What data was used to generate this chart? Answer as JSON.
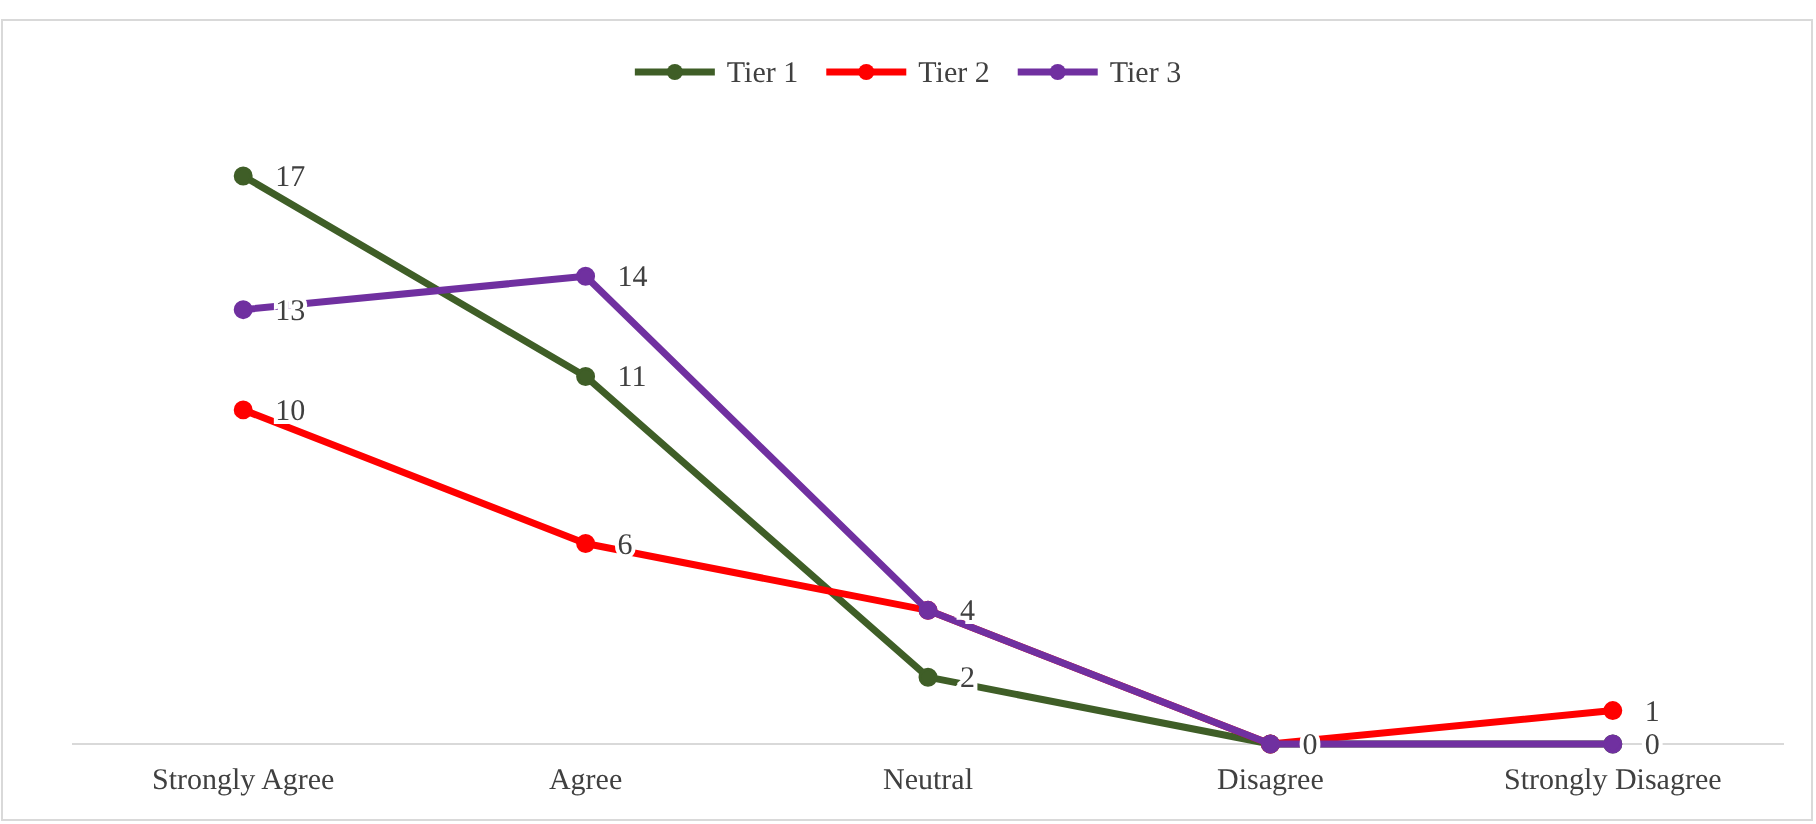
{
  "chart_data": {
    "type": "line",
    "categories": [
      "Strongly Agree",
      "Agree",
      "Neutral",
      "Disagree",
      "Strongly Disagree"
    ],
    "series": [
      {
        "name": "Tier 1",
        "color": "#3f5e27",
        "values": [
          17,
          11,
          2,
          0,
          0
        ],
        "value_labels": [
          "17",
          "11",
          "2",
          null,
          null
        ]
      },
      {
        "name": "Tier 2",
        "color": "#ff0000",
        "values": [
          10,
          6,
          4,
          0,
          1
        ],
        "value_labels": [
          "10",
          "6",
          null,
          null,
          "1"
        ]
      },
      {
        "name": "Tier 3",
        "color": "#7030a0",
        "values": [
          13,
          14,
          4,
          0,
          0
        ],
        "value_labels": [
          "13",
          "14",
          "4",
          "0",
          "0"
        ]
      }
    ],
    "tick_labels": "x",
    "legend": "top",
    "marker": "circle",
    "line_style": "solid"
  }
}
